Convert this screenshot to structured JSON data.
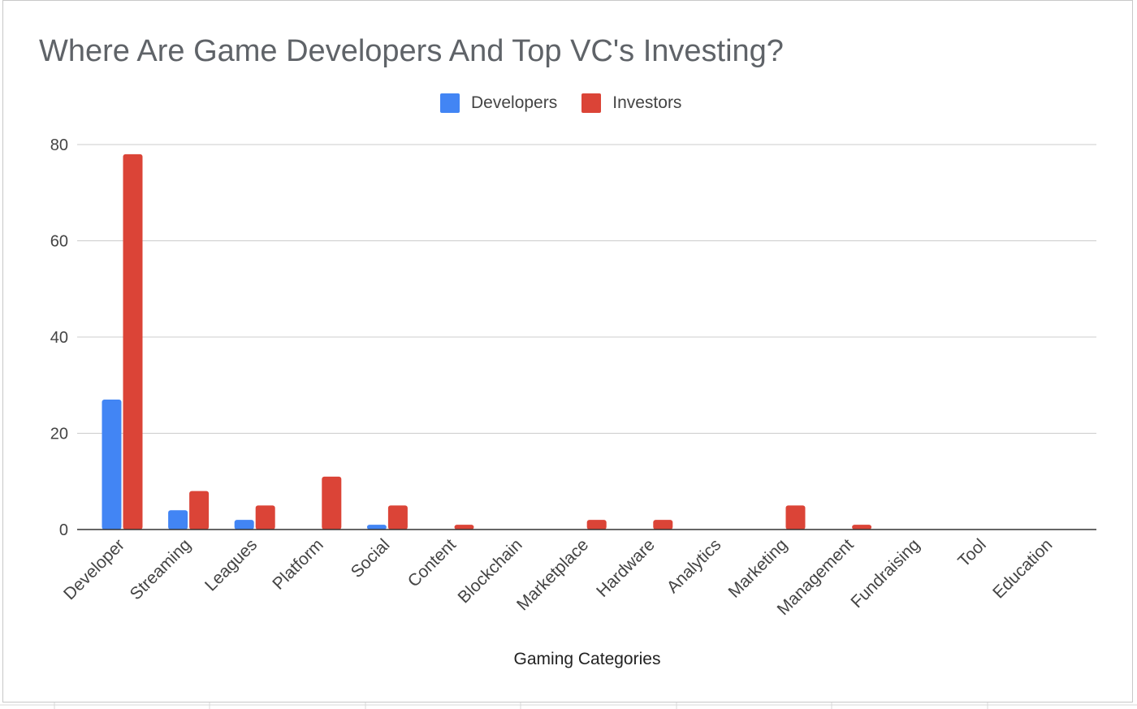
{
  "chart_data": {
    "type": "bar",
    "title": "Where Are Game Developers And Top VC's Investing?",
    "xlabel": "Gaming Categories",
    "ylabel": "",
    "ylim": [
      0,
      80
    ],
    "yticks": [
      0,
      20,
      40,
      60,
      80
    ],
    "grid": true,
    "legend_position": "top",
    "categories": [
      "Developer",
      "Streaming",
      "Leagues",
      "Platform",
      "Social",
      "Content",
      "Blockchain",
      "Marketplace",
      "Hardware",
      "Analytics",
      "Marketing",
      "Management",
      "Fundraising",
      "Tool",
      "Education"
    ],
    "series": [
      {
        "name": "Developers",
        "color": "#4285f4",
        "values": [
          27,
          4,
          2,
          0,
          1,
          0,
          0,
          0,
          0,
          0,
          0,
          0,
          0,
          0,
          0
        ]
      },
      {
        "name": "Investors",
        "color": "#db4437",
        "values": [
          78,
          8,
          5,
          11,
          5,
          1,
          0,
          2,
          2,
          0,
          5,
          1,
          0,
          0,
          0
        ]
      }
    ]
  }
}
